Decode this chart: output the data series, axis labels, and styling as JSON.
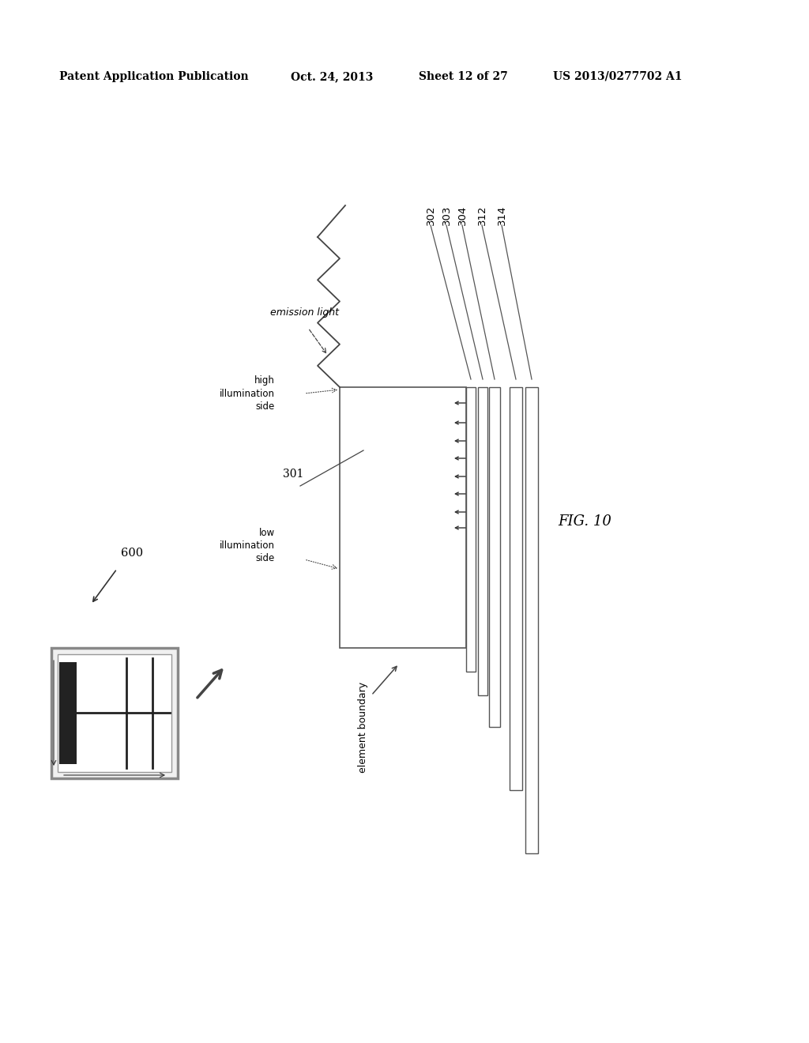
{
  "bg_color": "#ffffff",
  "header_text": "Patent Application Publication",
  "header_date": "Oct. 24, 2013",
  "header_sheet": "Sheet 12 of 27",
  "header_patent": "US 2013/0277702 A1",
  "fig_label": "FIG. 10",
  "label_600": "600",
  "label_301": "301",
  "label_302": "302",
  "label_303": "303",
  "label_304": "304",
  "label_312": "312",
  "label_314": "314",
  "label_high_illum": "high\nillumination\nside",
  "label_low_illum": "low\nillumination\nside",
  "label_emission": "emission light",
  "label_element_boundary": "element boundary"
}
